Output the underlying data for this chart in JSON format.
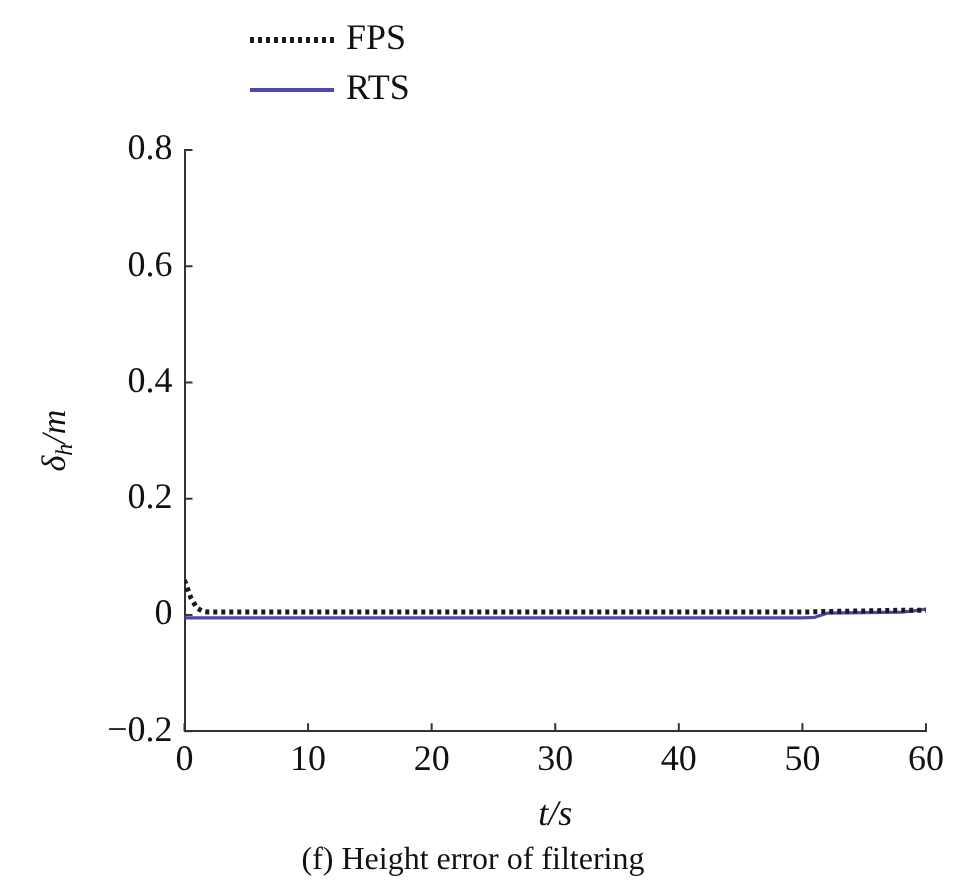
{
  "chart_data": {
    "type": "line",
    "title": "(f) Height error of filtering",
    "xlabel": "t/s",
    "ylabel": "δ$_{h}$/m",
    "xlim": [
      0,
      60
    ],
    "xticks": [
      0,
      10,
      20,
      30,
      40,
      50,
      60
    ],
    "ylim": [
      -0.2,
      0.8
    ],
    "yticks": [
      {
        "value": -0.2,
        "label": "−0.2"
      },
      0,
      0.2,
      0.4,
      0.6,
      0.8
    ],
    "grid": false,
    "legend": "top left",
    "marker": "none",
    "series": [
      {
        "name": "FPS",
        "color": "#1a1a1a",
        "line_style": "dotted",
        "x": [
          0,
          0.5,
          1,
          1.5,
          2,
          10,
          20,
          30,
          40,
          50,
          52,
          55,
          58,
          60
        ],
        "values": [
          0.06,
          0.03,
          0.012,
          0.006,
          0.005,
          0.005,
          0.005,
          0.005,
          0.005,
          0.005,
          0.006,
          0.007,
          0.008,
          0.008
        ]
      },
      {
        "name": "RTS",
        "color": "#4a4aa8",
        "line_style": "solid",
        "x": [
          0,
          10,
          20,
          30,
          40,
          50,
          51,
          52,
          55,
          58,
          59,
          60
        ],
        "values": [
          -0.005,
          -0.005,
          -0.005,
          -0.005,
          -0.005,
          -0.005,
          -0.004,
          0.003,
          0.004,
          0.005,
          0.007,
          0.01
        ]
      }
    ]
  }
}
